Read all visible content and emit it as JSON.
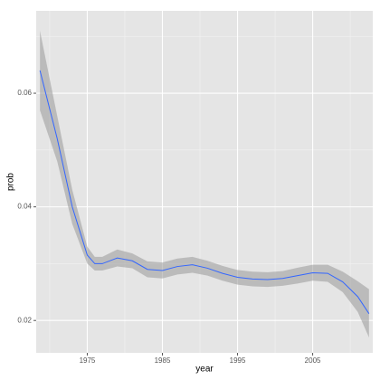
{
  "chart_data": {
    "type": "smooth",
    "x_label": "year",
    "y_label": "prob",
    "x": [
      1968.7,
      1971,
      1973,
      1975,
      1976,
      1977,
      1979,
      1981,
      1983,
      1985,
      1987,
      1989,
      1991,
      1993,
      1995,
      1997,
      1999,
      2001,
      2003,
      2005,
      2007,
      2009,
      2011,
      2012.5
    ],
    "values": [
      0.064,
      0.052,
      0.04,
      0.0315,
      0.03,
      0.03,
      0.031,
      0.0305,
      0.029,
      0.0288,
      0.0295,
      0.0298,
      0.0292,
      0.0283,
      0.0276,
      0.0273,
      0.0272,
      0.0274,
      0.0279,
      0.0284,
      0.0283,
      0.0268,
      0.0242,
      0.0212
    ],
    "lower": [
      0.057,
      0.048,
      0.037,
      0.03,
      0.0288,
      0.0288,
      0.0295,
      0.0292,
      0.0276,
      0.0274,
      0.0281,
      0.0284,
      0.0279,
      0.027,
      0.0263,
      0.026,
      0.0259,
      0.0261,
      0.0265,
      0.027,
      0.0268,
      0.025,
      0.0215,
      0.017
    ],
    "upper": [
      0.071,
      0.056,
      0.043,
      0.033,
      0.0312,
      0.0312,
      0.0325,
      0.0318,
      0.0304,
      0.0302,
      0.0309,
      0.0312,
      0.0305,
      0.0296,
      0.0289,
      0.0286,
      0.0285,
      0.0287,
      0.0293,
      0.0298,
      0.0298,
      0.0286,
      0.0269,
      0.0255
    ],
    "color": "#3366ff",
    "band_color": "#999999",
    "xlim": [
      1968.2,
      2013.0
    ],
    "ylim": [
      0.0143,
      0.0745
    ],
    "xticks": [
      1975,
      1985,
      1995,
      2005
    ],
    "yticks": [
      0.02,
      0.04,
      0.06
    ],
    "x_minor_ticks": [
      1970,
      1980,
      1990,
      2000,
      2010
    ],
    "y_minor_ticks": [
      0.03,
      0.05,
      0.07
    ],
    "grid": true
  }
}
